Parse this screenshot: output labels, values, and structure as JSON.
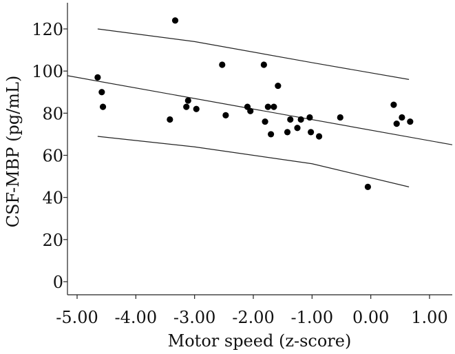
{
  "chart_data": {
    "type": "scatter",
    "title": "",
    "xlabel": "Motor speed (z-score)",
    "ylabel": "CSF-MBP (pg/mL)",
    "xlim": [
      -5.0,
      1.0
    ],
    "ylim": [
      0,
      130
    ],
    "xticks": [
      -5.0,
      -4.0,
      -3.0,
      -2.0,
      -1.0,
      0.0,
      1.0
    ],
    "xtick_labels": [
      "-5.00",
      "-4.00",
      "-3.00",
      "-2.00",
      "-1.00",
      "0.00",
      "1.00"
    ],
    "yticks": [
      0,
      20,
      40,
      60,
      80,
      100,
      120
    ],
    "ytick_labels": [
      "0",
      "20",
      "40",
      "60",
      "80",
      "100",
      "120"
    ],
    "grid": false,
    "legend": "none",
    "points": [
      {
        "x": -4.65,
        "y": 97
      },
      {
        "x": -4.58,
        "y": 90
      },
      {
        "x": -4.56,
        "y": 83
      },
      {
        "x": -3.42,
        "y": 77
      },
      {
        "x": -3.33,
        "y": 124
      },
      {
        "x": -3.11,
        "y": 86
      },
      {
        "x": -3.14,
        "y": 83
      },
      {
        "x": -2.97,
        "y": 82
      },
      {
        "x": -2.53,
        "y": 103
      },
      {
        "x": -2.47,
        "y": 79
      },
      {
        "x": -2.1,
        "y": 83
      },
      {
        "x": -2.05,
        "y": 81
      },
      {
        "x": -1.82,
        "y": 103
      },
      {
        "x": -1.8,
        "y": 76
      },
      {
        "x": -1.75,
        "y": 83
      },
      {
        "x": -1.7,
        "y": 70
      },
      {
        "x": -1.65,
        "y": 83
      },
      {
        "x": -1.58,
        "y": 93
      },
      {
        "x": -1.42,
        "y": 71
      },
      {
        "x": -1.37,
        "y": 77
      },
      {
        "x": -1.25,
        "y": 73
      },
      {
        "x": -1.19,
        "y": 77
      },
      {
        "x": -1.04,
        "y": 78
      },
      {
        "x": -1.02,
        "y": 71
      },
      {
        "x": -0.88,
        "y": 69
      },
      {
        "x": -0.52,
        "y": 78
      },
      {
        "x": -0.05,
        "y": 45
      },
      {
        "x": 0.39,
        "y": 84
      },
      {
        "x": 0.44,
        "y": 75
      },
      {
        "x": 0.53,
        "y": 78
      },
      {
        "x": 0.67,
        "y": 76
      }
    ],
    "regression_line": {
      "x": [
        -5.0,
        1.0
      ],
      "y": [
        97,
        67
      ]
    },
    "upper_band": [
      {
        "x": -4.65,
        "y": 120
      },
      {
        "x": -3.0,
        "y": 114
      },
      {
        "x": -1.0,
        "y": 104
      },
      {
        "x": 0.65,
        "y": 96
      }
    ],
    "lower_band": [
      {
        "x": -4.65,
        "y": 69
      },
      {
        "x": -3.0,
        "y": 64
      },
      {
        "x": -1.0,
        "y": 56
      },
      {
        "x": 0.65,
        "y": 45
      }
    ]
  }
}
